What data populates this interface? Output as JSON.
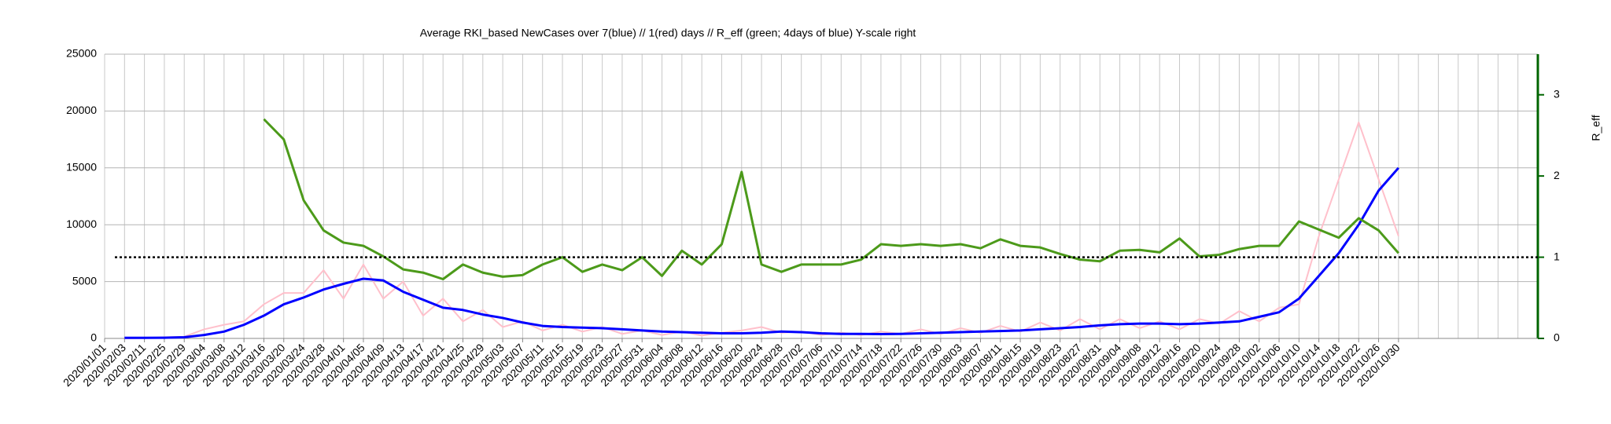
{
  "chart_data": {
    "type": "line",
    "title": "Average RKI_based NewCases over 7(blue) // 1(red) days //  R_eff (green; 4days of blue) Y-scale right",
    "y2_label": "R_eff",
    "categories": [
      "2020/01/01",
      "2020/02/03",
      "2020/02/11",
      "2020/02/25",
      "2020/02/29",
      "2020/03/04",
      "2020/03/08",
      "2020/03/12",
      "2020/03/16",
      "2020/03/20",
      "2020/03/24",
      "2020/03/28",
      "2020/04/01",
      "2020/04/05",
      "2020/04/09",
      "2020/04/13",
      "2020/04/17",
      "2020/04/21",
      "2020/04/25",
      "2020/04/29",
      "2020/05/03",
      "2020/05/07",
      "2020/05/11",
      "2020/05/15",
      "2020/05/19",
      "2020/05/23",
      "2020/05/27",
      "2020/05/31",
      "2020/06/04",
      "2020/06/08",
      "2020/06/12",
      "2020/06/16",
      "2020/06/20",
      "2020/06/24",
      "2020/06/28",
      "2020/07/02",
      "2020/07/06",
      "2020/07/10",
      "2020/07/14",
      "2020/07/18",
      "2020/07/22",
      "2020/07/26",
      "2020/07/30",
      "2020/08/03",
      "2020/08/07",
      "2020/08/11",
      "2020/08/15",
      "2020/08/19",
      "2020/08/23",
      "2020/08/27",
      "2020/08/31",
      "2020/09/04",
      "2020/09/08",
      "2020/09/12",
      "2020/09/16",
      "2020/09/20",
      "2020/09/24",
      "2020/09/28",
      "2020/10/02",
      "2020/10/06",
      "2020/10/10",
      "2020/10/14",
      "2020/10/18",
      "2020/10/22",
      "2020/10/26",
      "2020/10/30",
      null,
      null,
      null,
      null,
      null,
      null
    ],
    "series": [
      {
        "color": "#ffc0cb",
        "width": 2,
        "values": [
          null,
          0,
          30,
          100,
          150,
          800,
          1200,
          1500,
          3000,
          4000,
          4000,
          6000,
          3500,
          6500,
          3500,
          5000,
          2000,
          3500,
          1500,
          2500,
          1000,
          1500,
          700,
          1200,
          600,
          1000,
          400,
          700,
          300,
          600,
          250,
          500,
          700,
          1000,
          500,
          600,
          300,
          500,
          300,
          600,
          400,
          800,
          400,
          900,
          500,
          1100,
          600,
          1400,
          700,
          1700,
          800,
          1700,
          900,
          1500,
          800,
          1700,
          1300,
          2400,
          1500,
          2700,
          3000,
          9000,
          14000,
          19000,
          14000,
          9000,
          null,
          null,
          null,
          null,
          null,
          null
        ]
      },
      {
        "color": "#0000ff",
        "width": 3,
        "values": [
          null,
          50,
          50,
          60,
          100,
          300,
          600,
          1200,
          2000,
          3000,
          3600,
          4300,
          4800,
          5250,
          5100,
          4100,
          3400,
          2700,
          2500,
          2100,
          1800,
          1400,
          1100,
          1000,
          950,
          900,
          800,
          700,
          600,
          550,
          500,
          450,
          450,
          500,
          600,
          550,
          450,
          400,
          400,
          380,
          400,
          450,
          500,
          550,
          600,
          650,
          700,
          800,
          900,
          1000,
          1150,
          1250,
          1300,
          1300,
          1250,
          1300,
          1400,
          1500,
          1900,
          2300,
          3500,
          5500,
          7500,
          10000,
          13000,
          15000,
          null,
          null,
          null,
          null,
          null,
          null
        ]
      },
      {
        "color": "#4c9a1a",
        "width": 3,
        "axis": "y2",
        "values": [
          null,
          null,
          null,
          null,
          null,
          null,
          null,
          null,
          2.7,
          2.45,
          1.7,
          1.33,
          1.18,
          1.14,
          1.01,
          0.85,
          0.81,
          0.73,
          0.91,
          0.81,
          0.76,
          0.78,
          0.91,
          1.0,
          0.82,
          0.91,
          0.84,
          1.0,
          0.77,
          1.08,
          0.91,
          1.16,
          2.05,
          0.91,
          0.82,
          0.91,
          0.91,
          0.91,
          0.97,
          1.16,
          1.14,
          1.16,
          1.14,
          1.16,
          1.11,
          1.22,
          1.14,
          1.12,
          1.04,
          0.97,
          0.95,
          1.08,
          1.09,
          1.06,
          1.23,
          1.01,
          1.03,
          1.1,
          1.14,
          1.14,
          1.44,
          1.34,
          1.24,
          1.48,
          1.33,
          1.05,
          null,
          null,
          null,
          null,
          null,
          null
        ]
      }
    ],
    "ylim": [
      0,
      25000
    ],
    "yticks": [
      0,
      5000,
      10000,
      15000,
      20000,
      25000
    ],
    "y2lim": [
      0,
      3.5
    ],
    "y2ticks": [
      0,
      1,
      2,
      3
    ],
    "y2_axis_color": "#006400",
    "reference_line": {
      "axis": "y2",
      "value": 1,
      "color": "#000000"
    },
    "grid": true
  }
}
